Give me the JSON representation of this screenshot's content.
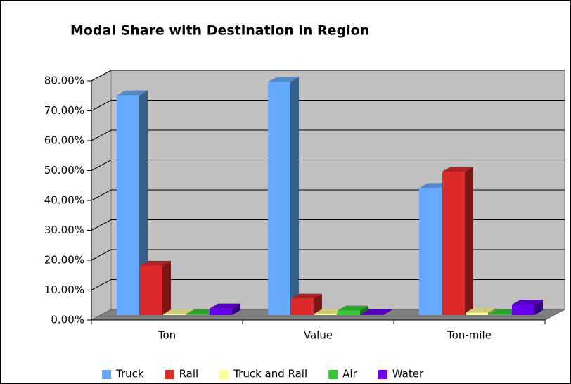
{
  "chart_data": {
    "type": "bar3d",
    "title": "Modal Share with Destination in Region",
    "categories": [
      "Ton",
      "Value",
      "Ton-mile"
    ],
    "series": [
      {
        "name": "Truck",
        "color": "#66aaff",
        "values": [
          73.5,
          78,
          42.5
        ]
      },
      {
        "name": "Rail",
        "color": "#dd2a2a",
        "values": [
          16.5,
          5.5,
          48
        ]
      },
      {
        "name": "Truck and Rail",
        "color": "#ffff99",
        "values": [
          0.3,
          0.5,
          0.8
        ]
      },
      {
        "name": "Air",
        "color": "#33cc33",
        "values": [
          0.3,
          1.5,
          0.3
        ]
      },
      {
        "name": "Water",
        "color": "#6600ee",
        "values": [
          2.2,
          0.3,
          3.5
        ]
      }
    ],
    "ylim": [
      0,
      80
    ],
    "yticks": [
      {
        "value": 0,
        "label": "0.00%"
      },
      {
        "value": 10,
        "label": "10.00%"
      },
      {
        "value": 20,
        "label": "20.00%"
      },
      {
        "value": 30,
        "label": "30.00%"
      },
      {
        "value": 40,
        "label": "40.00%"
      },
      {
        "value": 50,
        "label": "50.00%"
      },
      {
        "value": 60,
        "label": "60.00%"
      },
      {
        "value": 70,
        "label": "70.00%"
      },
      {
        "value": 80,
        "label": "80.00%"
      }
    ],
    "grid": true,
    "legend": "bottom"
  }
}
